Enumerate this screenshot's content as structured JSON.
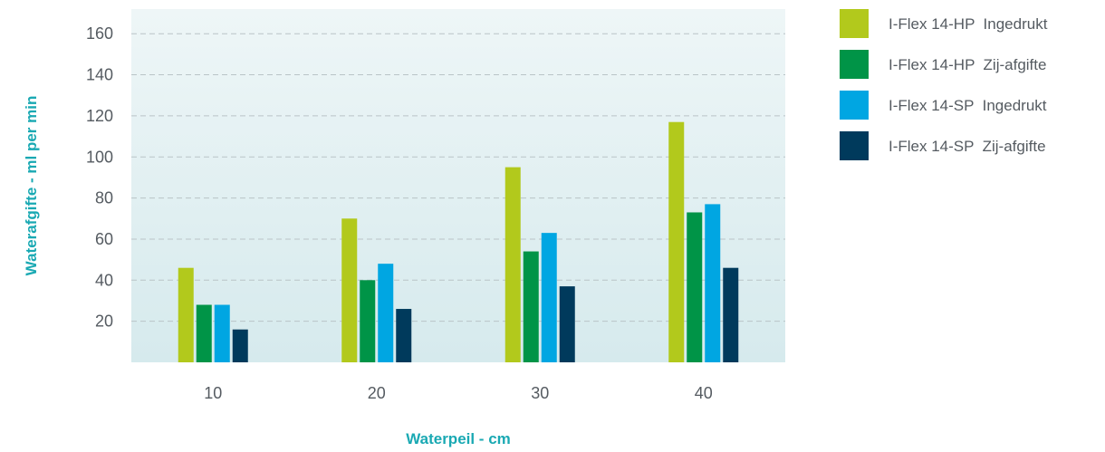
{
  "chart_data": {
    "type": "bar",
    "title": "",
    "xlabel": "Waterpeil - cm",
    "ylabel": "Waterafgifte - ml per min",
    "categories": [
      "10",
      "20",
      "30",
      "40"
    ],
    "yticks": [
      20,
      40,
      60,
      80,
      100,
      120,
      140,
      160
    ],
    "ylim": [
      0,
      172
    ],
    "grid": true,
    "legend_position": "top-right",
    "series": [
      {
        "name": "I-Flex 14-HP  Ingedrukt",
        "color": "#b2c91c",
        "values": [
          46,
          70,
          95,
          117
        ]
      },
      {
        "name": "I-Flex 14-HP  Zij-afgifte",
        "color": "#009447",
        "values": [
          28,
          40,
          54,
          73
        ]
      },
      {
        "name": "I-Flex 14-SP  Ingedrukt",
        "color": "#00a6e2",
        "values": [
          28,
          48,
          63,
          77
        ]
      },
      {
        "name": "I-Flex 14-SP  Zij-afgifte",
        "color": "#003a5c",
        "values": [
          16,
          26,
          37,
          46
        ]
      }
    ]
  }
}
